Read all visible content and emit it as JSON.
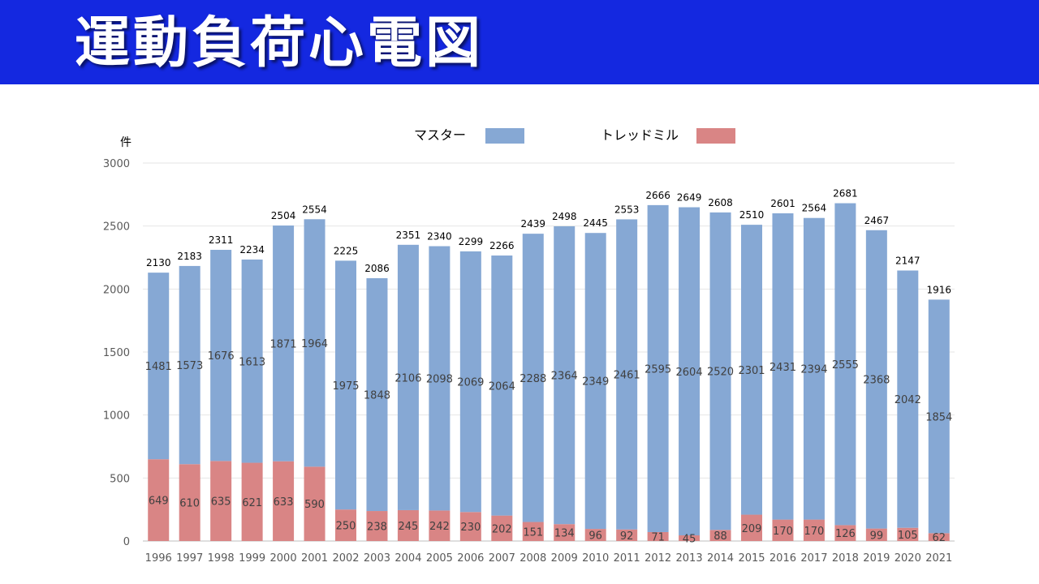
{
  "header": {
    "title": "運動負荷心電図"
  },
  "chart_data": {
    "type": "bar",
    "stacked": true,
    "title": "運動負荷心電図",
    "ylabel": "件",
    "xlabel": "",
    "ylim": [
      0,
      3000
    ],
    "yticks": [
      0,
      500,
      1000,
      1500,
      2000,
      2500,
      3000
    ],
    "grid": true,
    "legend_position": "top",
    "categories": [
      "1996",
      "1997",
      "1998",
      "1999",
      "2000",
      "2001",
      "2002",
      "2003",
      "2004",
      "2005",
      "2006",
      "2007",
      "2008",
      "2009",
      "2010",
      "2011",
      "2012",
      "2013",
      "2014",
      "2015",
      "2016",
      "2017",
      "2018",
      "2019",
      "2020",
      "2021"
    ],
    "series": [
      {
        "name": "トレッドミル",
        "color": "#d98585",
        "values": [
          649,
          610,
          635,
          621,
          633,
          590,
          250,
          238,
          245,
          242,
          230,
          202,
          151,
          134,
          96,
          92,
          71,
          45,
          88,
          209,
          170,
          170,
          126,
          99,
          105,
          62
        ]
      },
      {
        "name": "マスター",
        "color": "#86a8d4",
        "values": [
          1481,
          1573,
          1676,
          1613,
          1871,
          1964,
          1975,
          1848,
          2106,
          2098,
          2069,
          2064,
          2288,
          2364,
          2349,
          2461,
          2595,
          2604,
          2520,
          2301,
          2431,
          2394,
          2555,
          2368,
          2042,
          1854
        ]
      }
    ],
    "totals": [
      2130,
      2183,
      2311,
      2234,
      2504,
      2554,
      2225,
      2086,
      2351,
      2340,
      2299,
      2266,
      2439,
      2498,
      2445,
      2553,
      2666,
      2649,
      2608,
      2510,
      2601,
      2564,
      2681,
      2467,
      2147,
      1916
    ],
    "legend_order": [
      "マスター",
      "トレッドミル"
    ]
  }
}
